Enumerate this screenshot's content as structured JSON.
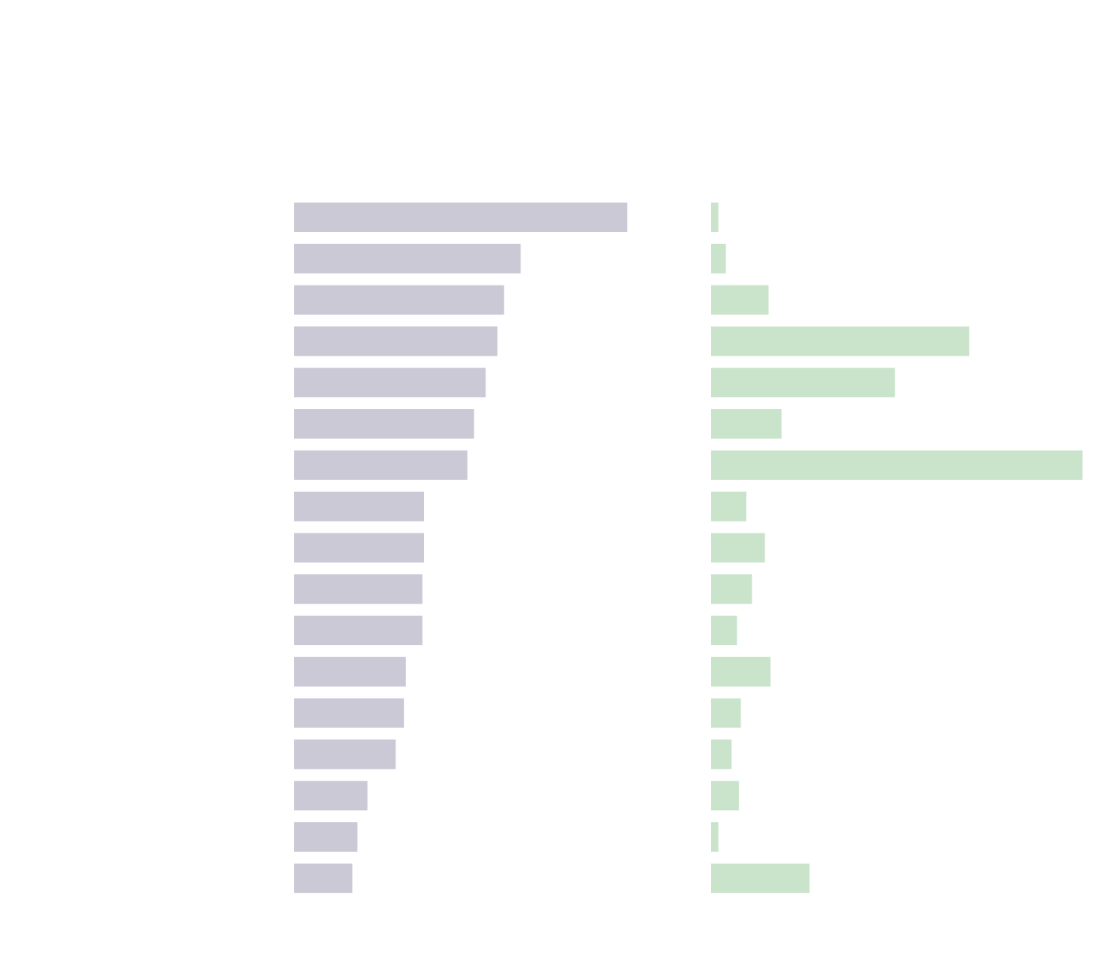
{
  "chart_data": [
    {
      "type": "bar",
      "orientation": "horizontal",
      "color": "#cbc9d5",
      "values": [
        100,
        68,
        63,
        61,
        57.5,
        54,
        52,
        39,
        39,
        38.5,
        38.5,
        33.5,
        33,
        30.5,
        22,
        19,
        17.5
      ],
      "xlim": [
        0,
        100
      ],
      "grid": false,
      "legend": "none"
    },
    {
      "type": "bar",
      "orientation": "horizontal",
      "color": "#cae3cb",
      "values": [
        2,
        4,
        15.5,
        69.5,
        49.5,
        19,
        100,
        9.5,
        14.5,
        11,
        7,
        16,
        8,
        5.5,
        7.5,
        2,
        26.5
      ],
      "xlim": [
        0,
        100
      ],
      "grid": false,
      "legend": "none"
    }
  ]
}
